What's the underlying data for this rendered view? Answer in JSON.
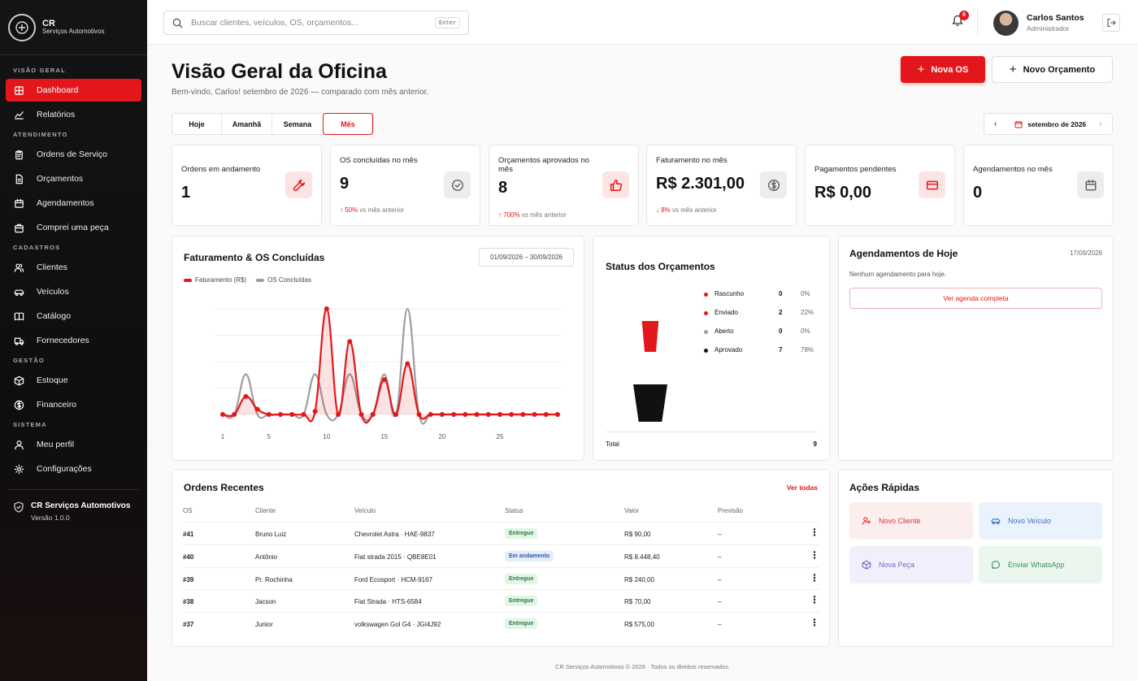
{
  "brand": {
    "title": "CR",
    "subtitle": "Serviços Automotivos"
  },
  "sidebar": {
    "sections": [
      {
        "label": "VISÃO GERAL",
        "items": [
          {
            "label": "Dashboard",
            "icon": "grid-icon",
            "active": true
          },
          {
            "label": "Relatórios",
            "icon": "chart-icon"
          }
        ]
      },
      {
        "label": "ATENDIMENTO",
        "items": [
          {
            "label": "Ordens de Serviço",
            "icon": "clipboard-icon"
          },
          {
            "label": "Orçamentos",
            "icon": "document-icon"
          },
          {
            "label": "Agendamentos",
            "icon": "calendar-icon"
          },
          {
            "label": "Comprei uma peça",
            "icon": "bag-icon"
          }
        ]
      },
      {
        "label": "CADASTROS",
        "items": [
          {
            "label": "Clientes",
            "icon": "users-icon"
          },
          {
            "label": "Veículos",
            "icon": "car-icon"
          },
          {
            "label": "Catálogo",
            "icon": "book-icon"
          },
          {
            "label": "Fornecedores",
            "icon": "truck-icon"
          }
        ]
      },
      {
        "label": "GESTÃO",
        "items": [
          {
            "label": "Estoque",
            "icon": "box-icon"
          },
          {
            "label": "Financeiro",
            "icon": "dollar-icon"
          }
        ]
      },
      {
        "label": "SISTEMA",
        "items": [
          {
            "label": "Meu perfil",
            "icon": "user-icon"
          },
          {
            "label": "Configurações",
            "icon": "gear-icon"
          }
        ]
      }
    ],
    "footer": {
      "title": "CR Serviços Automotivos",
      "version": "Versão 1.0.0"
    }
  },
  "header": {
    "search_placeholder": "Buscar clientes, veículos, OS, orçamentos...",
    "search_kbd": "Enter",
    "notifications": "6",
    "user_name": "Carlos Santos",
    "user_role": "Administrador"
  },
  "page": {
    "title": "Visão Geral da Oficina",
    "subtitle": "Bem-vindo, Carlos! setembro de 2026 — comparado com mês anterior.",
    "new_os": "Nova OS",
    "new_budget": "Novo Orçamento"
  },
  "tabs": [
    "Hoje",
    "Amanhã",
    "Semana",
    "Mês"
  ],
  "month": "setembro de 2026",
  "stats": [
    {
      "label": "Ordens em andamento",
      "value": "1",
      "icon": "wrench-icon",
      "tone": "red"
    },
    {
      "label": "OS concluídas no mês",
      "value": "9",
      "trend": "↑ 50%",
      "trend_suffix": "vs mês anterior",
      "icon": "check-circle-icon",
      "tone": "gray"
    },
    {
      "label": "Orçamentos aprovados no mês",
      "value": "8",
      "trend": "↑ 700%",
      "trend_suffix": "vs mês anterior",
      "icon": "thumbs-up-icon",
      "tone": "red"
    },
    {
      "label": "Faturamento no mês",
      "value": "R$ 2.301,00",
      "trend": "↓ 8%",
      "trend_suffix": "vs mês anterior",
      "icon": "dollar-icon",
      "tone": "gray"
    },
    {
      "label": "Pagamentos pendentes",
      "value": "R$ 0,00",
      "icon": "credit-card-icon",
      "tone": "red"
    },
    {
      "label": "Agendamentos no mês",
      "value": "0",
      "icon": "calendar-icon",
      "tone": "gray"
    }
  ],
  "revenue_chart": {
    "title": "Faturamento & OS Concluídas",
    "range": "01/09/2026 – 30/09/2026"
  },
  "chart_data": [
    {
      "type": "line",
      "title": "Faturamento & OS Concluídas",
      "x": [
        1,
        2,
        3,
        4,
        5,
        6,
        7,
        8,
        9,
        10,
        11,
        12,
        13,
        14,
        15,
        16,
        17,
        18,
        19,
        20,
        21,
        22,
        23,
        24,
        25,
        26,
        27,
        28,
        29,
        30
      ],
      "xticks": [
        1,
        5,
        10,
        15,
        20,
        25
      ],
      "ylim": [
        0,
        1
      ],
      "grid": true,
      "legend": "top-left",
      "series": [
        {
          "name": "Faturamento (R$)",
          "color": "#e3171b",
          "values": [
            0,
            0,
            0.17,
            0.05,
            0,
            0,
            0,
            0,
            0.03,
            1,
            0,
            0.69,
            0,
            0,
            0.33,
            0,
            0.48,
            0,
            0,
            0,
            0,
            0,
            0,
            0,
            0,
            0,
            0,
            0,
            0,
            0
          ]
        },
        {
          "name": "OS Concluídas",
          "color": "#9e9e9e",
          "values": [
            0,
            0,
            0.38,
            0,
            0,
            0,
            0,
            0,
            0.38,
            0,
            0,
            0.38,
            0,
            0,
            0.38,
            0,
            1,
            0,
            0,
            0,
            0,
            0,
            0,
            0,
            0,
            0,
            0,
            0,
            0,
            0
          ]
        }
      ]
    },
    {
      "type": "bar",
      "title": "Status dos Orçamentos",
      "categories": [
        "Rascunho",
        "Enviado",
        "Aberto",
        "Aprovado"
      ],
      "values": [
        0,
        2,
        0,
        7
      ],
      "percent": [
        "0%",
        "22%",
        "0%",
        "78%"
      ],
      "colors": [
        "#e3171b",
        "#e3171b",
        "#9e9e9e",
        "#111111"
      ],
      "total_label": "Total",
      "total": 9
    }
  ],
  "agenda": {
    "title": "Agendamentos de Hoje",
    "date": "17/09/2026",
    "empty": "Nenhum agendamento para hoje.",
    "link": "Ver agenda completa"
  },
  "orders": {
    "title": "Ordens Recentes",
    "see_all": "Ver todas",
    "headers": [
      "OS",
      "Cliente",
      "Veículo",
      "Status",
      "Valor",
      "Previsão"
    ],
    "rows": [
      {
        "os": "#41",
        "client": "Bruno Luiz",
        "vehicle": "Chevrolet Astra · HAE-9837",
        "status": "Entregue",
        "value": "R$ 90,00",
        "forecast": "–"
      },
      {
        "os": "#40",
        "client": "Antônio",
        "vehicle": "Fiat strada 2015 · QBE8E01",
        "status": "Em andamento",
        "value": "R$ 8.448,40",
        "forecast": "–"
      },
      {
        "os": "#39",
        "client": "Pr. Rochinha",
        "vehicle": "Ford Ecosport · HCM-9167",
        "status": "Entregue",
        "value": "R$ 240,00",
        "forecast": "–"
      },
      {
        "os": "#38",
        "client": "Jacson",
        "vehicle": "Fiat Strada · HTS-6584",
        "status": "Entregue",
        "value": "R$ 70,00",
        "forecast": "–"
      },
      {
        "os": "#37",
        "client": "Junior",
        "vehicle": "volkswagen Gol G4 · JGI4J92",
        "status": "Entregue",
        "value": "R$ 575,00",
        "forecast": "–"
      }
    ]
  },
  "quick": {
    "title": "Ações Rápidas",
    "actions": [
      {
        "label": "Novo Cliente",
        "icon": "user-plus-icon",
        "bg": "#fdeeee",
        "color": "#d9363a"
      },
      {
        "label": "Novo Veículo",
        "icon": "car-icon",
        "bg": "#eaf2fd",
        "color": "#3f6fb8"
      },
      {
        "label": "Nova Peça",
        "icon": "box-icon",
        "bg": "#f1effb",
        "color": "#7a68c4"
      },
      {
        "label": "Enviar WhatsApp",
        "icon": "chat-icon",
        "bg": "#ebf7ee",
        "color": "#3a8f55"
      }
    ]
  },
  "footer": "CR Serviços Automotivos © 2026 · Todos os direitos reservados."
}
